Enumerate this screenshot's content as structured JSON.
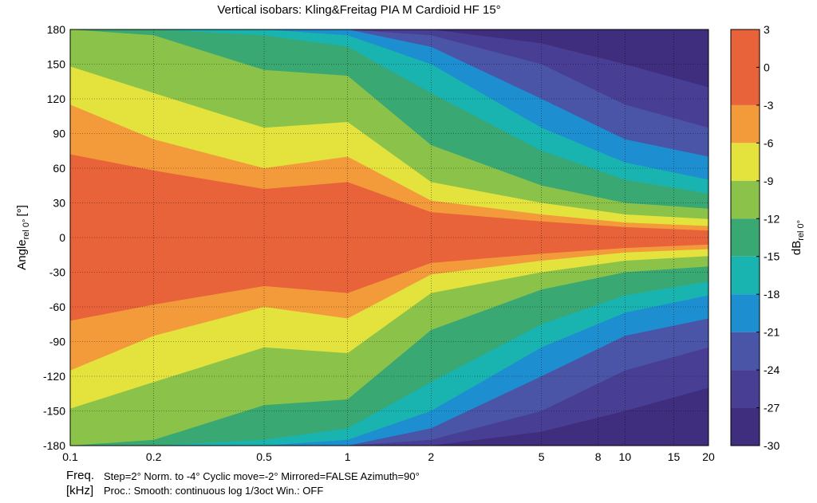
{
  "chart_data": {
    "type": "heatmap",
    "title": "Vertical isobars: Kling&Freitag  PIA M  Cardioid HF 15°",
    "ylabel_main": "Angle",
    "ylabel_sub": "rel 0°",
    "ylabel_unit": "[°]",
    "xscale": "log",
    "xlim": [
      0.1,
      20
    ],
    "ylim": [
      -180,
      180
    ],
    "x_ticks": [
      0.1,
      0.2,
      0.5,
      1,
      2,
      5,
      8,
      10,
      15,
      20
    ],
    "x_tick_labels": [
      "0.1",
      "0.2",
      "0.5",
      "1",
      "2",
      "5",
      "8",
      "10",
      "15",
      "20"
    ],
    "y_ticks": [
      180,
      150,
      120,
      90,
      60,
      30,
      0,
      -30,
      -60,
      -90,
      -120,
      -150,
      -180
    ],
    "y_tick_labels": [
      "180",
      "150",
      "120",
      "90",
      "60",
      "30",
      "0",
      "-30",
      "-60",
      "-90",
      "-120",
      "-150",
      "-180"
    ],
    "grid": true,
    "colorbar": {
      "label_main": "dB",
      "label_sub": "rel 0°",
      "ticks": [
        3,
        0,
        -3,
        -6,
        -9,
        -12,
        -15,
        -18,
        -21,
        -24,
        -27,
        -30
      ],
      "tick_labels": [
        "3",
        "0",
        "-3",
        "-6",
        "-9",
        "-12",
        "-15",
        "-18",
        "-21",
        "-24",
        "-27",
        "-30"
      ],
      "levels": [
        {
          "from": 3,
          "to": -3,
          "color": "#e8623a"
        },
        {
          "from": -3,
          "to": -6,
          "color": "#f39b3b"
        },
        {
          "from": -6,
          "to": -9,
          "color": "#e4e33e"
        },
        {
          "from": -9,
          "to": -12,
          "color": "#8bc34a"
        },
        {
          "from": -12,
          "to": -15,
          "color": "#3aa872"
        },
        {
          "from": -15,
          "to": -18,
          "color": "#19b3b0"
        },
        {
          "from": -18,
          "to": -21,
          "color": "#1d8fd0"
        },
        {
          "from": -21,
          "to": -24,
          "color": "#4a55a8"
        },
        {
          "from": -24,
          "to": -27,
          "color": "#483f94"
        },
        {
          "from": -27,
          "to": -30,
          "color": "#3f2d7e"
        }
      ]
    },
    "beamwidth_contours": [
      {
        "level": -3,
        "freq": [
          0.1,
          0.2,
          0.5,
          1,
          2,
          5,
          10,
          20
        ],
        "angle": [
          72,
          58,
          42,
          48,
          22,
          14,
          9,
          6
        ]
      },
      {
        "level": -6,
        "freq": [
          0.1,
          0.2,
          0.5,
          1,
          2,
          5,
          10,
          20
        ],
        "angle": [
          115,
          85,
          60,
          70,
          32,
          20,
          13,
          10
        ]
      },
      {
        "level": -9,
        "freq": [
          0.1,
          0.2,
          0.5,
          1,
          2,
          5,
          10,
          20
        ],
        "angle": [
          148,
          125,
          95,
          100,
          48,
          30,
          20,
          16
        ]
      },
      {
        "level": -12,
        "freq": [
          0.1,
          0.2,
          0.5,
          1,
          2,
          5,
          10,
          20
        ],
        "angle": [
          180,
          175,
          145,
          140,
          80,
          45,
          30,
          25
        ]
      },
      {
        "level": -15,
        "freq": [
          0.1,
          0.2,
          0.5,
          1,
          2,
          5,
          10,
          20
        ],
        "angle": [
          180,
          180,
          175,
          165,
          125,
          75,
          50,
          38
        ]
      },
      {
        "level": -18,
        "freq": [
          0.1,
          0.2,
          0.5,
          1,
          2,
          5,
          10,
          20
        ],
        "angle": [
          180,
          180,
          180,
          175,
          150,
          95,
          65,
          50
        ]
      },
      {
        "level": -21,
        "freq": [
          0.1,
          0.2,
          0.5,
          1,
          2,
          5,
          10,
          20
        ],
        "angle": [
          180,
          180,
          180,
          180,
          165,
          120,
          85,
          70
        ]
      },
      {
        "level": -24,
        "freq": [
          0.1,
          0.2,
          0.5,
          1,
          2,
          5,
          10,
          20
        ],
        "angle": [
          180,
          180,
          180,
          180,
          175,
          150,
          115,
          95
        ]
      },
      {
        "level": -27,
        "freq": [
          0.1,
          0.2,
          0.5,
          1,
          2,
          5,
          10,
          20
        ],
        "angle": [
          180,
          180,
          180,
          180,
          180,
          168,
          150,
          130
        ]
      }
    ]
  },
  "footer": {
    "freq_label": "Freq.",
    "unit_label": "[kHz]",
    "line1": "Step=2°   Norm. to -4°   Cyclic move=-2°   Mirrored=FALSE   Azimuth=90°",
    "line2": "Proc.: Smooth: continuous log 1/3oct    Win.: OFF"
  }
}
